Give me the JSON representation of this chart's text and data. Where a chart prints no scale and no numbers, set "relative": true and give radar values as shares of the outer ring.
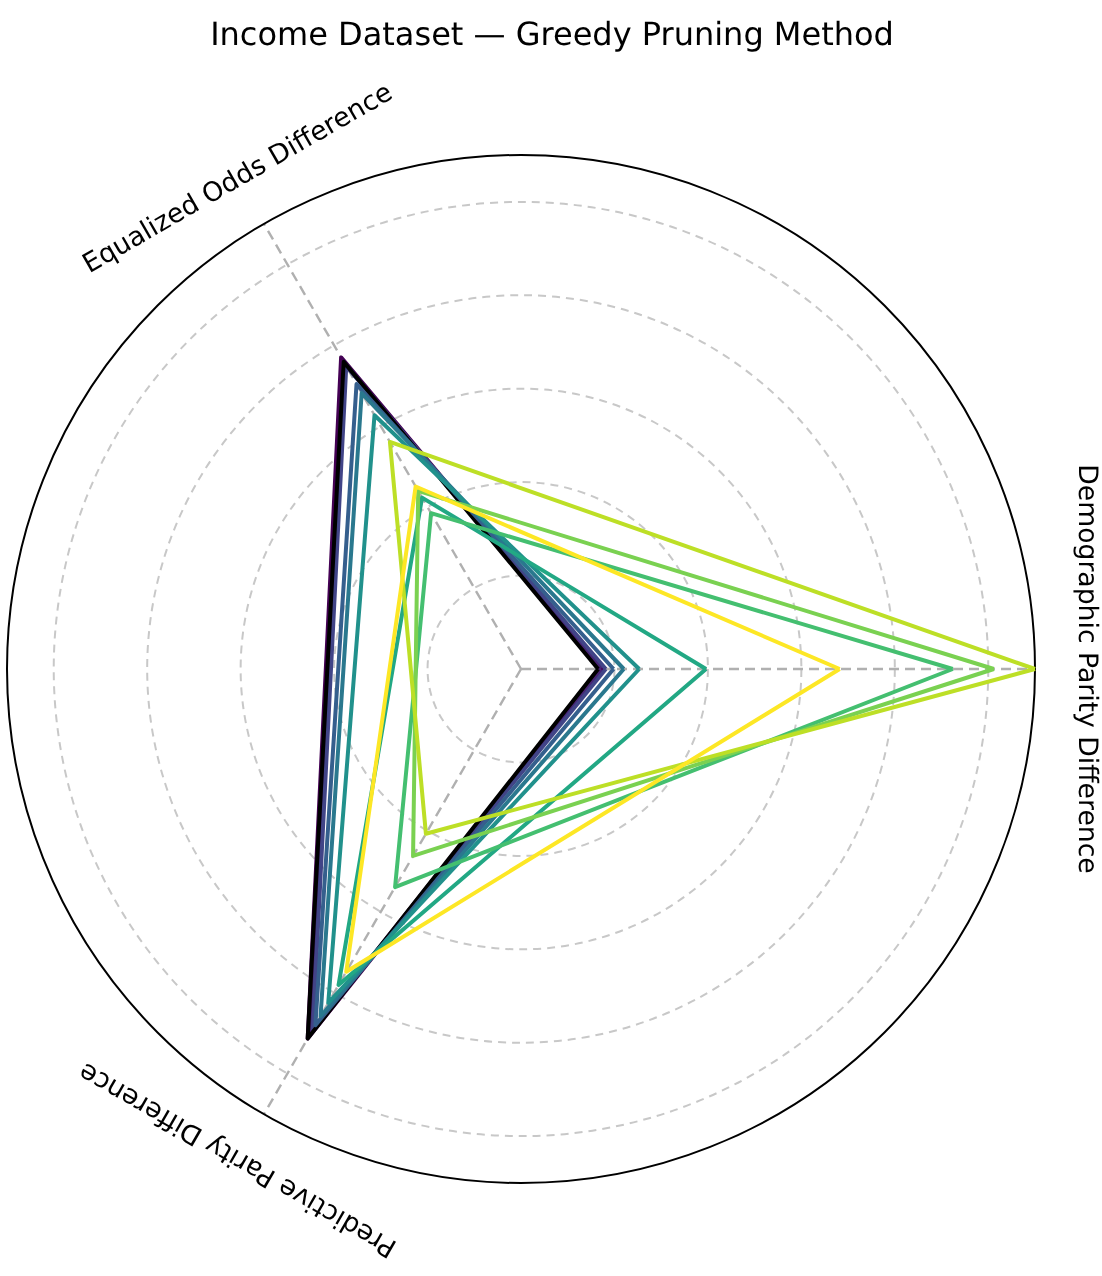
{
  "chart_data": {
    "type": "radar",
    "title": "Income Dataset — Greedy Pruning Method",
    "relative": true,
    "grid": true,
    "categories": [
      "Demographic Parity Difference",
      "Predictive Parity Difference",
      "Equalized Odds Difference"
    ],
    "series": [
      {
        "color": "#440154",
        "values": [
          0.16,
          0.83,
          0.7
        ]
      },
      {
        "color": "#482475",
        "values": [
          0.155,
          0.82,
          0.69
        ]
      },
      {
        "color": "#414487",
        "values": [
          0.165,
          0.81,
          0.68
        ]
      },
      {
        "color": "#000000",
        "values": [
          0.15,
          0.83,
          0.69
        ]
      },
      {
        "color": "#355f8d",
        "values": [
          0.18,
          0.8,
          0.64
        ]
      },
      {
        "color": "#2a788e",
        "values": [
          0.2,
          0.78,
          0.62
        ]
      },
      {
        "color": "#21918c",
        "values": [
          0.23,
          0.75,
          0.57
        ]
      },
      {
        "color": "#22a884",
        "values": [
          0.36,
          0.71,
          0.385
        ]
      },
      {
        "color": "#44bf70",
        "values": [
          0.84,
          0.49,
          0.35
        ]
      },
      {
        "color": "#7ad151",
        "values": [
          0.92,
          0.42,
          0.4
        ]
      },
      {
        "color": "#bddf26",
        "values": [
          1.0,
          0.37,
          0.51
        ]
      },
      {
        "color": "#fde725",
        "values": [
          0.62,
          0.68,
          0.41
        ]
      }
    ]
  }
}
